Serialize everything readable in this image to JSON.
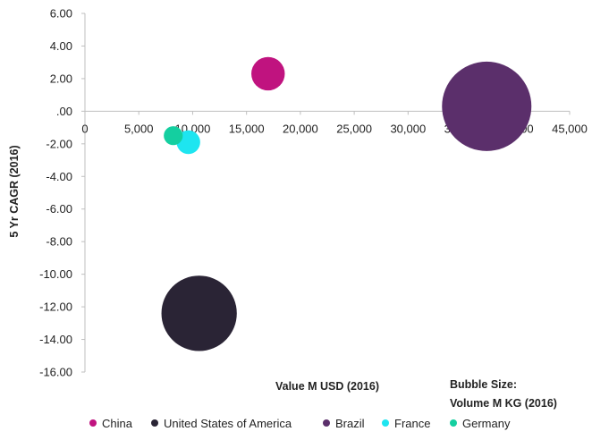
{
  "chart_data": {
    "type": "bubble",
    "xlabel": "Value M USD (2016)",
    "ylabel": "5 Yr CAGR (2016)",
    "size_label_line1": "Bubble Size:",
    "size_label_line2": "Volume M KG (2016)",
    "xlim": [
      0,
      45000
    ],
    "ylim": [
      -16,
      6
    ],
    "x_ticks": [
      "0",
      "5,000",
      "10,000",
      "15,000",
      "20,000",
      "25,000",
      "30,000",
      "35,000",
      "40,000",
      "45,000"
    ],
    "y_ticks": [
      "6.00",
      "4.00",
      "2.00",
      ".00",
      "-2.00",
      "-4.00",
      "-6.00",
      "-8.00",
      "-10.00",
      "-12.00",
      "-14.00",
      "-16.00"
    ],
    "legend_position": "bottom",
    "grid": false,
    "series": [
      {
        "name": "China",
        "x": 17000,
        "y": 2.3,
        "size": 14,
        "color": "#c0137f"
      },
      {
        "name": "United States of America",
        "x": 10600,
        "y": -12.4,
        "size": 71,
        "color": "#2a2435"
      },
      {
        "name": "Brazil",
        "x": 37300,
        "y": 0.3,
        "size": 100,
        "color": "#5b2f6b"
      },
      {
        "name": "France",
        "x": 9600,
        "y": -1.9,
        "size": 7,
        "color": "#1ee5f0"
      },
      {
        "name": "Germany",
        "x": 8200,
        "y": -1.5,
        "size": 4.5,
        "color": "#14cfa0"
      }
    ]
  }
}
